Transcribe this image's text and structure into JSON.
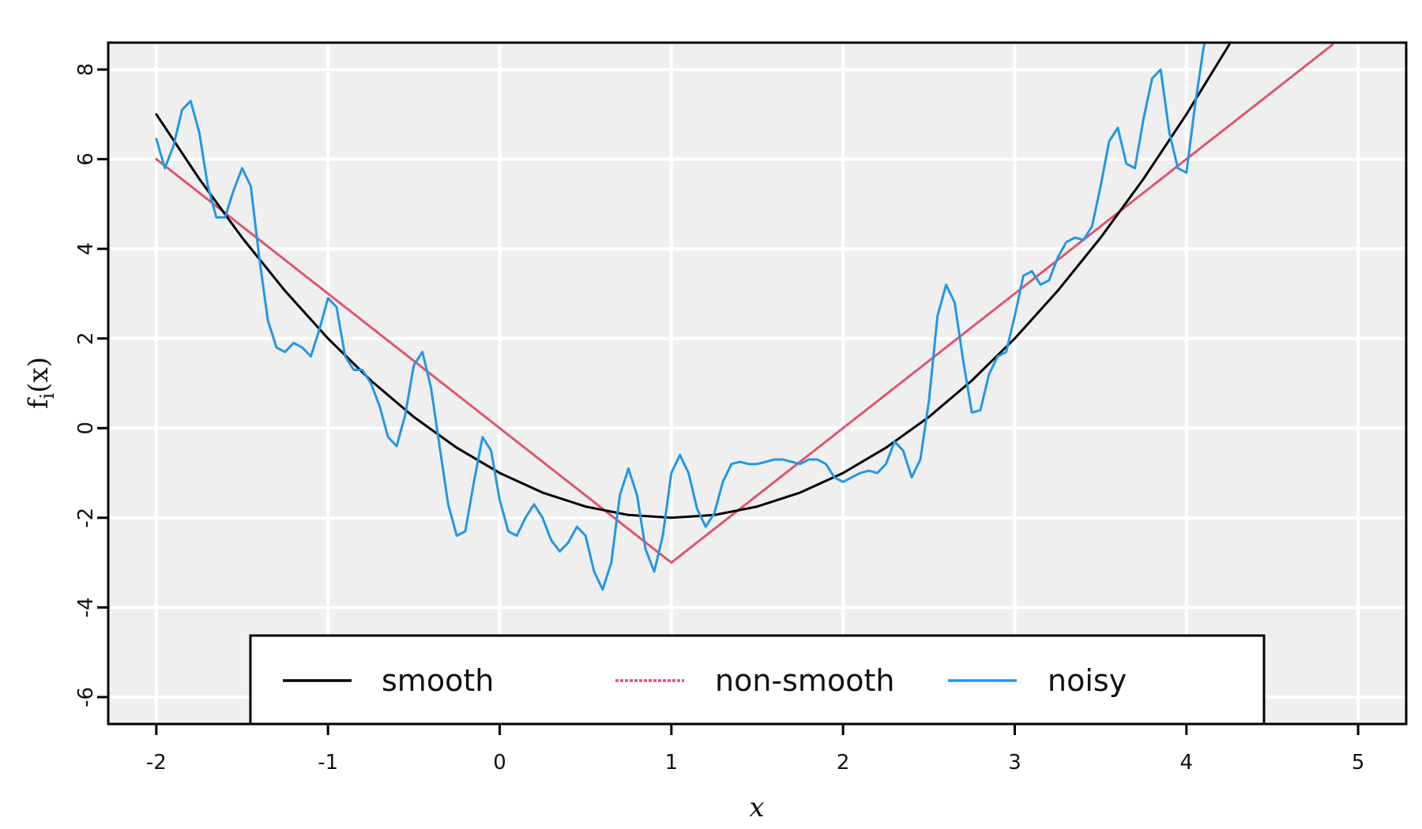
{
  "chart_data": {
    "type": "line",
    "xlabel": "x",
    "ylabel_main": "f",
    "ylabel_sub": "i",
    "ylabel_arg": "(x)",
    "xlim": [
      -2.28,
      5.28
    ],
    "ylim": [
      -6.6,
      8.6
    ],
    "x_ticks": [
      -2,
      -1,
      0,
      1,
      2,
      3,
      4,
      5
    ],
    "y_ticks": [
      -6,
      -4,
      -2,
      0,
      2,
      4,
      6,
      8
    ],
    "grid": true,
    "legend": "bottom-center",
    "background": "#efefef",
    "series": [
      {
        "name": "smooth",
        "color": "#000000",
        "x": [
          -2,
          -1.75,
          -1.5,
          -1.25,
          -1,
          -0.75,
          -0.5,
          -0.25,
          0,
          0.25,
          0.5,
          0.75,
          1,
          1.25,
          1.5,
          1.75,
          2,
          2.25,
          2.5,
          2.75,
          3,
          3.25,
          3.5,
          3.75,
          4,
          4.25
        ],
        "y": [
          7,
          5.5625,
          4.25,
          3.0625,
          2,
          1.0625,
          0.25,
          -0.4375,
          -1,
          -1.4375,
          -1.75,
          -1.9375,
          -2,
          -1.9375,
          -1.75,
          -1.4375,
          -1,
          -0.4375,
          0.25,
          1.0625,
          2,
          3.0625,
          4.25,
          5.5625,
          7,
          8.5625
        ]
      },
      {
        "name": "non-smooth",
        "color": "#df536b",
        "x": [
          -2,
          1,
          4.85
        ],
        "y": [
          6,
          -3,
          8.55
        ]
      },
      {
        "name": "noisy",
        "color": "#2297e6",
        "x": [
          -2,
          -1.95,
          -1.9,
          -1.85,
          -1.8,
          -1.75,
          -1.7,
          -1.65,
          -1.6,
          -1.55,
          -1.5,
          -1.45,
          -1.4,
          -1.35,
          -1.3,
          -1.25,
          -1.2,
          -1.15,
          -1.1,
          -1.05,
          -1,
          -0.95,
          -0.9,
          -0.85,
          -0.8,
          -0.75,
          -0.7,
          -0.65,
          -0.6,
          -0.55,
          -0.5,
          -0.45,
          -0.4,
          -0.35,
          -0.3,
          -0.25,
          -0.2,
          -0.15,
          -0.1,
          -0.05,
          0,
          0.05,
          0.1,
          0.15,
          0.2,
          0.25,
          0.3,
          0.35,
          0.4,
          0.45,
          0.5,
          0.55,
          0.6,
          0.65,
          0.7,
          0.75,
          0.8,
          0.85,
          0.9,
          0.95,
          1,
          1.05,
          1.1,
          1.15,
          1.2,
          1.25,
          1.3,
          1.35,
          1.4,
          1.45,
          1.5,
          1.55,
          1.6,
          1.65,
          1.7,
          1.75,
          1.8,
          1.85,
          1.9,
          1.95,
          2,
          2.05,
          2.1,
          2.15,
          2.2,
          2.25,
          2.3,
          2.35,
          2.4,
          2.45,
          2.5,
          2.55,
          2.6,
          2.65,
          2.7,
          2.75,
          2.8,
          2.85,
          2.9,
          2.95,
          3,
          3.05,
          3.1,
          3.15,
          3.2,
          3.25,
          3.3,
          3.35,
          3.4,
          3.45,
          3.5,
          3.55,
          3.6,
          3.65,
          3.7,
          3.75,
          3.8,
          3.85,
          3.9,
          3.95,
          4,
          4.05,
          4.1,
          4.15
        ],
        "y": [
          6.45,
          5.8,
          6.3,
          7.1,
          7.3,
          6.6,
          5.4,
          4.7,
          4.7,
          5.3,
          5.8,
          5.4,
          3.8,
          2.4,
          1.8,
          1.7,
          1.9,
          1.8,
          1.6,
          2.2,
          2.9,
          2.7,
          1.6,
          1.3,
          1.3,
          1.0,
          0.5,
          -0.2,
          -0.4,
          0.3,
          1.4,
          1.7,
          0.9,
          -0.4,
          -1.7,
          -2.4,
          -2.3,
          -1.2,
          -0.2,
          -0.5,
          -1.6,
          -2.3,
          -2.4,
          -2.0,
          -1.7,
          -2.0,
          -2.5,
          -2.75,
          -2.55,
          -2.2,
          -2.4,
          -3.2,
          -3.6,
          -3.0,
          -1.5,
          -0.9,
          -1.5,
          -2.7,
          -3.2,
          -2.4,
          -1.0,
          -0.6,
          -1.0,
          -1.8,
          -2.2,
          -1.9,
          -1.2,
          -0.8,
          -0.75,
          -0.8,
          -0.8,
          -0.75,
          -0.7,
          -0.7,
          -0.75,
          -0.8,
          -0.7,
          -0.7,
          -0.8,
          -1.1,
          -1.2,
          -1.1,
          -1.0,
          -0.95,
          -1.0,
          -0.8,
          -0.3,
          -0.5,
          -1.1,
          -0.7,
          0.6,
          2.5,
          3.2,
          2.8,
          1.5,
          0.35,
          0.4,
          1.2,
          1.6,
          1.7,
          2.5,
          3.4,
          3.5,
          3.2,
          3.3,
          3.8,
          4.15,
          4.25,
          4.2,
          4.5,
          5.4,
          6.4,
          6.7,
          5.9,
          5.8,
          6.9,
          7.8,
          8.0,
          6.6,
          5.8,
          5.7,
          7.2,
          8.5,
          9.3
        ]
      }
    ]
  }
}
